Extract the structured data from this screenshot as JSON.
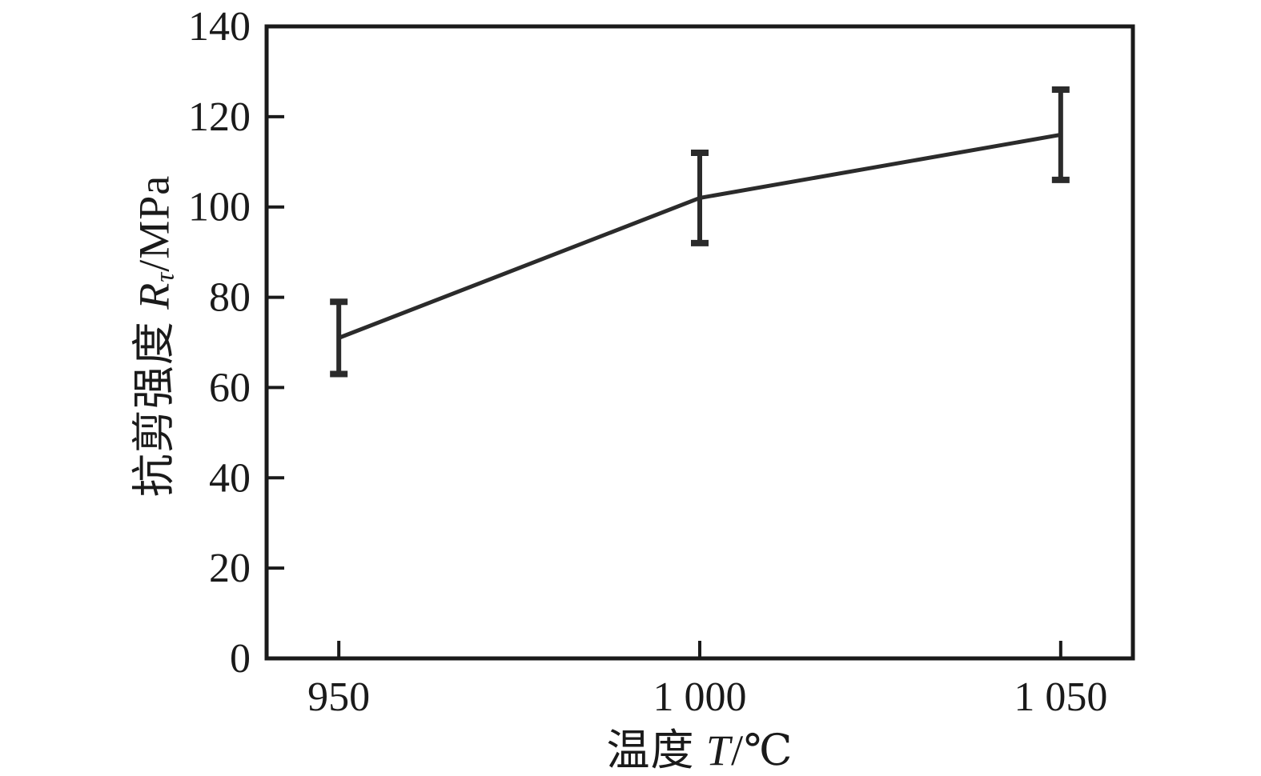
{
  "chart_data": {
    "type": "line",
    "x": [
      950,
      1000,
      1050
    ],
    "values": [
      71,
      102,
      116
    ],
    "error_plus": [
      8,
      10,
      10
    ],
    "error_minus": [
      8,
      10,
      10
    ],
    "title": "",
    "xlabel": "温度 T/℃",
    "ylabel": "抗剪强度 Rτ/MPa",
    "xlim": [
      940,
      1060
    ],
    "ylim": [
      0,
      140
    ],
    "x_ticks": [
      950,
      1000,
      1050
    ],
    "x_tick_labels": [
      "950",
      "1 000",
      "1 050"
    ],
    "y_ticks": [
      0,
      20,
      40,
      60,
      80,
      100,
      120,
      140
    ],
    "y_tick_labels": [
      "0",
      "20",
      "40",
      "60",
      "80",
      "100",
      "120",
      "140"
    ],
    "grid": false,
    "legend": null,
    "line_color": "#2b2b2b",
    "axis_color": "#1a1a1a",
    "background_color": "#ffffff"
  },
  "labels": {
    "xlabel_prefix": "温度 ",
    "xlabel_var": "T",
    "xlabel_suffix": "/℃",
    "ylabel_prefix": "抗剪强度 ",
    "ylabel_var": "R",
    "ylabel_sub": "τ",
    "ylabel_suffix": "/MPa"
  }
}
